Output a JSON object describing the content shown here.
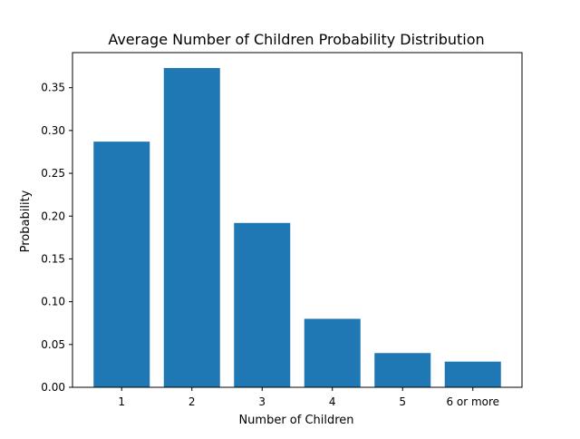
{
  "chart_data": {
    "type": "bar",
    "title": "Average Number of Children Probability Distribution",
    "xlabel": "Number of Children",
    "ylabel": "Probability",
    "categories": [
      "1",
      "2",
      "3",
      "4",
      "5",
      "6 or more"
    ],
    "values": [
      0.287,
      0.373,
      0.192,
      0.08,
      0.04,
      0.03
    ],
    "ylim": [
      0,
      0.391
    ],
    "yticks": [
      "0.00",
      "0.05",
      "0.10",
      "0.15",
      "0.20",
      "0.25",
      "0.30",
      "0.35"
    ],
    "grid": false,
    "legend": "none",
    "bar_color": "#1f77b4"
  }
}
